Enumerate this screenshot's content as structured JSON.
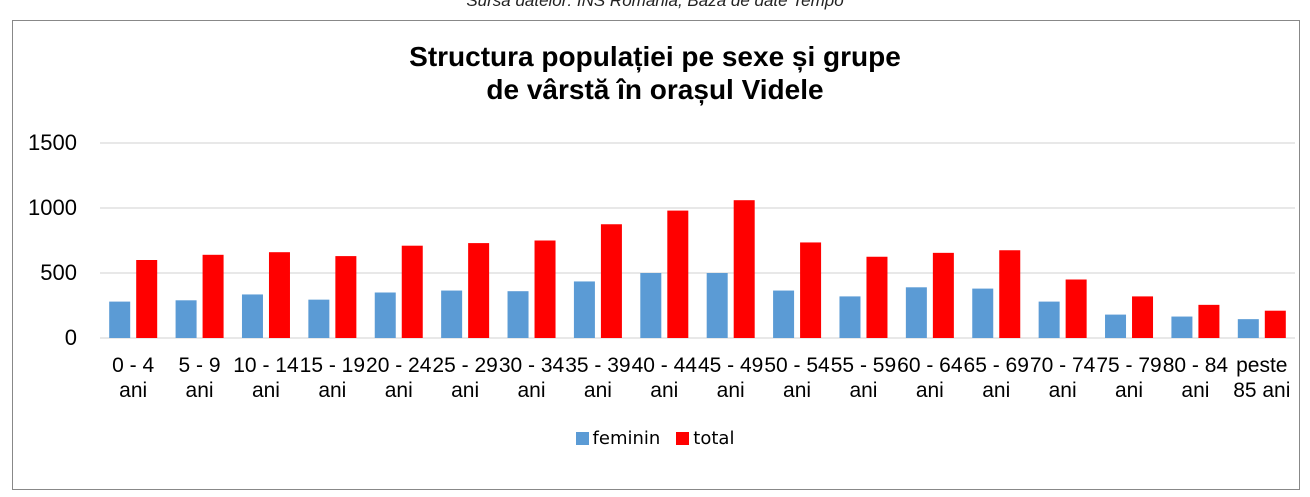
{
  "source": "Sursa datelor: INS România, Baza de date Tempo",
  "chart_data": {
    "type": "bar",
    "title": "Structura populației pe sexe și grupe\nde vârstă în orașul Videle",
    "categories": [
      "0 - 4 ani",
      "5 - 9 ani",
      "10 - 14 ani",
      "15 - 19 ani",
      "20 - 24 ani",
      "25 - 29 ani",
      "30 - 34 ani",
      "35 - 39 ani",
      "40 - 44 ani",
      "45 - 49 ani",
      "50 - 54 ani",
      "55 - 59 ani",
      "60 - 64 ani",
      "65 - 69 ani",
      "70 - 74 ani",
      "75 - 79 ani",
      "80 - 84 ani",
      "peste 85 ani"
    ],
    "series": [
      {
        "name": "feminin",
        "color": "#5b9bd5",
        "values": [
          280,
          290,
          335,
          295,
          350,
          365,
          360,
          435,
          500,
          500,
          365,
          320,
          390,
          380,
          280,
          180,
          165,
          145
        ]
      },
      {
        "name": "total",
        "color": "#ff0000",
        "values": [
          600,
          640,
          660,
          630,
          710,
          730,
          750,
          875,
          980,
          1060,
          735,
          625,
          655,
          675,
          450,
          320,
          255,
          210
        ]
      }
    ],
    "ylim": [
      0,
      1500
    ],
    "yticks": [
      0,
      500,
      1000,
      1500
    ],
    "grid": true,
    "legend": "bottom"
  }
}
